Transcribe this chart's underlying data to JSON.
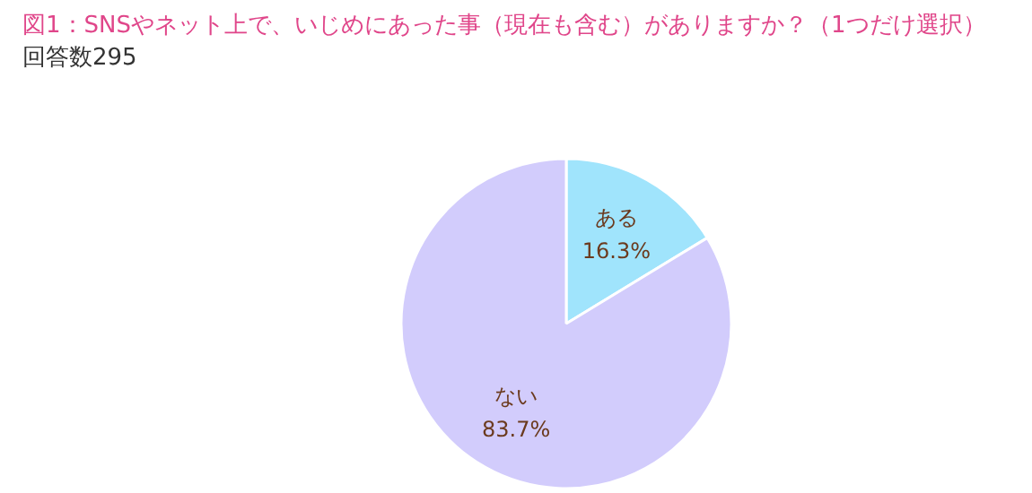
{
  "chart_data": {
    "type": "pie",
    "title": "図1：SNSやネット上で、いじめにあった事（現在も含む）がありますか？（1つだけ選択）",
    "subtitle": "回答数295",
    "categories": [
      "ある",
      "ない"
    ],
    "values": [
      16.3,
      83.7
    ],
    "colors": [
      "#a0e4fc",
      "#d2ccfc"
    ],
    "value_labels": [
      "16.3%",
      "83.7%"
    ]
  }
}
